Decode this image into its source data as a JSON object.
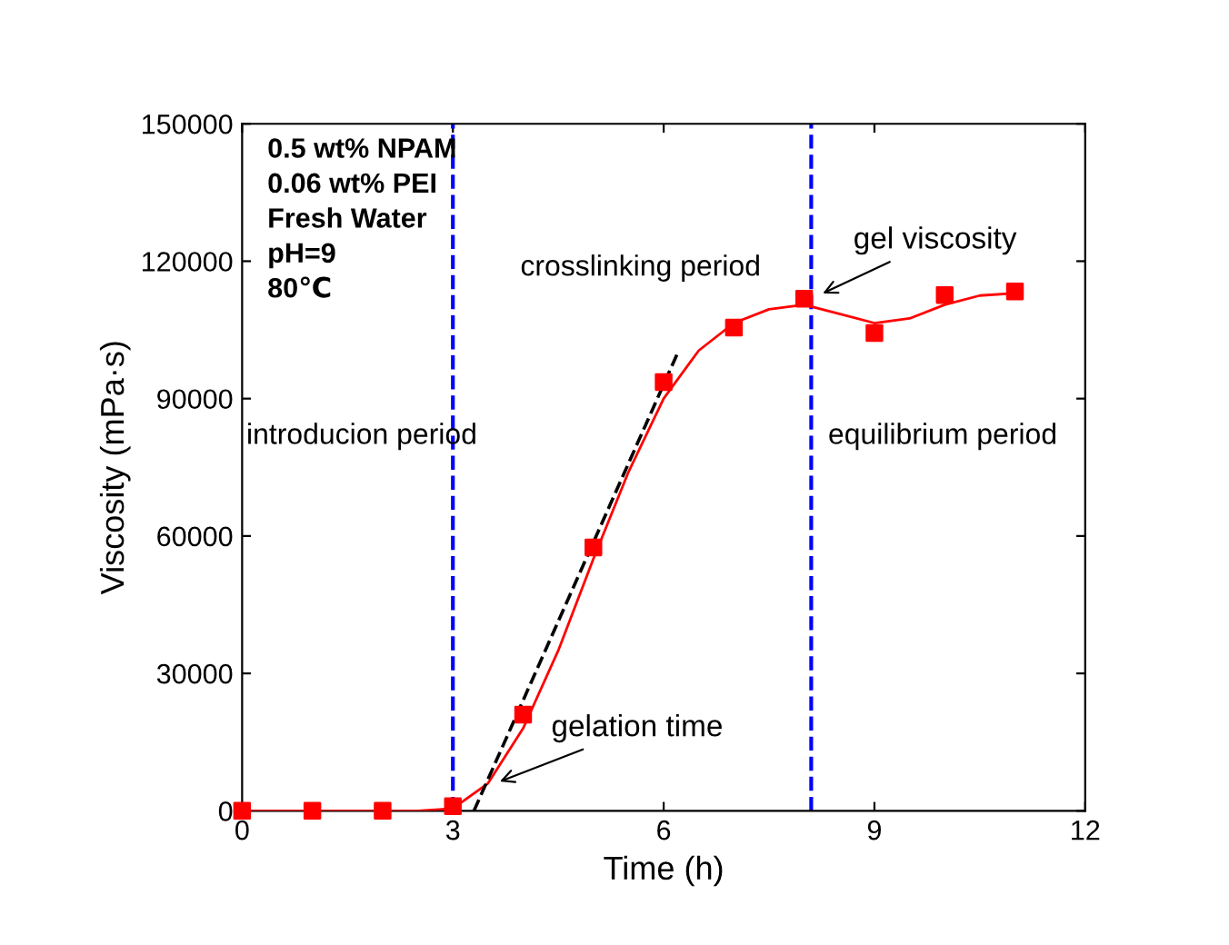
{
  "chart_data": {
    "type": "scatter",
    "xlabel": "Time (h)",
    "ylabel": "Viscosity (mPa·s)",
    "xlim": [
      0,
      12
    ],
    "ylim": [
      0,
      150000
    ],
    "xticks": [
      0,
      3,
      6,
      9,
      12
    ],
    "yticks": [
      0,
      30000,
      60000,
      90000,
      120000,
      150000
    ],
    "grid": false,
    "series": [
      {
        "marker": "square",
        "color": "#ff0000",
        "x": [
          0,
          1,
          2,
          3,
          4,
          5,
          6,
          7,
          8,
          9,
          10,
          11
        ],
        "values": [
          0,
          0,
          0,
          1000,
          21000,
          57500,
          93600,
          105500,
          111800,
          104300,
          112600,
          113400
        ]
      },
      {
        "type": "line",
        "marker": "none",
        "line_style": "solid",
        "color": "#ff0000",
        "x": [
          0,
          1,
          2,
          2.5,
          3,
          3.5,
          4,
          4.5,
          5,
          5.5,
          6,
          6.5,
          7,
          7.5,
          8,
          8.5,
          9,
          9.5,
          10,
          10.5,
          11
        ],
        "values": [
          0,
          0,
          0,
          0,
          500,
          6000,
          18000,
          35000,
          55000,
          74000,
          90000,
          100500,
          106500,
          109500,
          110500,
          108500,
          106500,
          107500,
          110500,
          112500,
          113000
        ]
      },
      {
        "type": "line",
        "marker": "none",
        "line_style": "dashed",
        "color": "#000000",
        "x": [
          3.3,
          6.2
        ],
        "values": [
          0,
          100000
        ]
      }
    ],
    "ref_lines": [
      {
        "axis": "x",
        "value": 3,
        "color": "#0000ff",
        "line_style": "dashed"
      },
      {
        "axis": "x",
        "value": 8.1,
        "color": "#0000ff",
        "line_style": "dashed"
      }
    ],
    "annotations": [
      "0.5 wt% NPAM\n0.06 wt% PEI\nFresh Water\npH=9\n80℃",
      "crosslinking period",
      "introducion period",
      "equilibrium period",
      {
        "text": "gel viscosity",
        "x": 8.2,
        "y": 112500
      },
      {
        "text": "gelation time",
        "x": 3.6,
        "y": 6000
      }
    ]
  }
}
